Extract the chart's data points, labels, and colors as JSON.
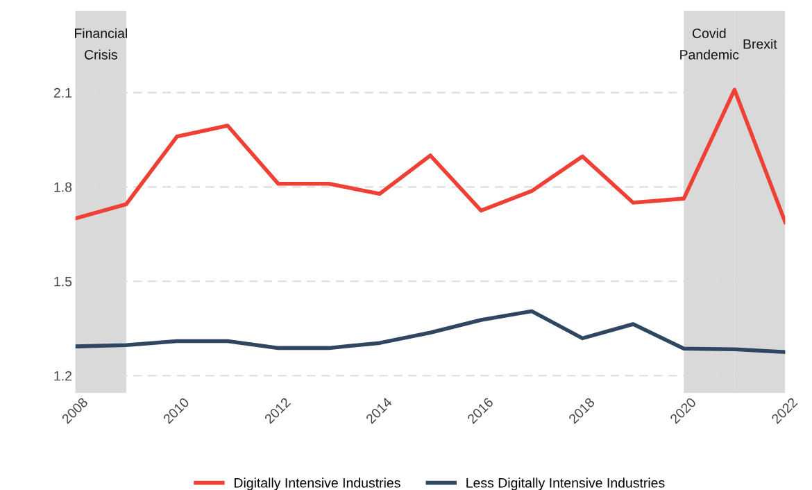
{
  "chart_data": {
    "type": "line",
    "x": [
      2008,
      2009,
      2010,
      2011,
      2012,
      2013,
      2014,
      2015,
      2016,
      2017,
      2018,
      2019,
      2020,
      2021,
      2022
    ],
    "series": [
      {
        "name": "Digitally Intensive Industries",
        "color": "#ee4035",
        "values": [
          1.7,
          1.745,
          1.96,
          1.995,
          1.81,
          1.81,
          1.778,
          1.9,
          1.725,
          1.787,
          1.897,
          1.75,
          1.763,
          2.109,
          1.688
        ]
      },
      {
        "name": "Less Digitally Intensive Industries",
        "color": "#2e4660",
        "values": [
          1.293,
          1.297,
          1.31,
          1.31,
          1.288,
          1.288,
          1.304,
          1.337,
          1.377,
          1.405,
          1.319,
          1.364,
          1.286,
          1.284,
          1.275
        ]
      }
    ],
    "xlim": [
      2008,
      2022
    ],
    "xticks": [
      2008,
      2010,
      2012,
      2014,
      2016,
      2018,
      2020,
      2022
    ],
    "ylim": [
      1.145,
      2.36
    ],
    "yticks": [
      1.2,
      1.5,
      1.8,
      2.1
    ],
    "bands": [
      {
        "axis": "x",
        "from": 2008,
        "to": 2009,
        "label": "Financial\nCrisis",
        "color": "#d9d9d9"
      },
      {
        "axis": "x",
        "from": 2020,
        "to": 2021,
        "label": "Covid\nPandemic",
        "color": "#d9d9d9"
      },
      {
        "axis": "x",
        "from": 2021,
        "to": 2022,
        "label": "Brexit",
        "color": "#d9d9d9"
      }
    ],
    "grid": "y",
    "legend": "bottom",
    "line_style": "solid",
    "marker": "none"
  }
}
